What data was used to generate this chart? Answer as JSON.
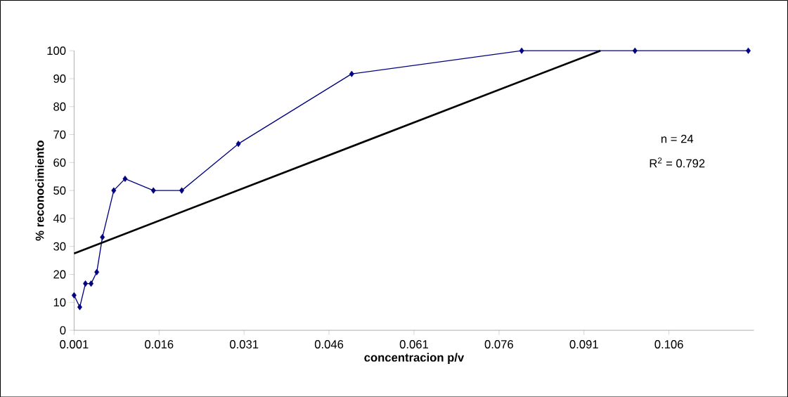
{
  "chart_data": {
    "type": "line",
    "xlabel": "concentracion p/v",
    "ylabel": "% reconocimiento",
    "annotations": [
      "n = 24",
      "R$^{2}$ = 0.792"
    ],
    "xlim": [
      0.001,
      0.121
    ],
    "xticks": [
      0.001,
      0.016,
      0.031,
      0.046,
      0.061,
      0.076,
      0.091,
      0.106
    ],
    "ylim": [
      0,
      100
    ],
    "yticks": [
      0,
      10,
      20,
      30,
      40,
      50,
      60,
      70,
      80,
      90,
      100
    ],
    "grid": false,
    "series": [
      {
        "color": "#000080",
        "marker": "diamond",
        "x": [
          0.001,
          0.002,
          0.003,
          0.004,
          0.005,
          0.006,
          0.008,
          0.01,
          0.015,
          0.02,
          0.03,
          0.05,
          0.08,
          0.1,
          0.12
        ],
        "values": [
          12.5,
          8.3,
          16.7,
          16.7,
          20.8,
          33.3,
          50,
          54.2,
          50,
          50,
          66.7,
          91.7,
          100,
          100,
          100
        ]
      },
      {
        "type": "line",
        "color": "#000000",
        "marker": "none",
        "x": [
          0.001,
          0.0939
        ],
        "values": [
          27.5,
          100
        ]
      }
    ]
  }
}
